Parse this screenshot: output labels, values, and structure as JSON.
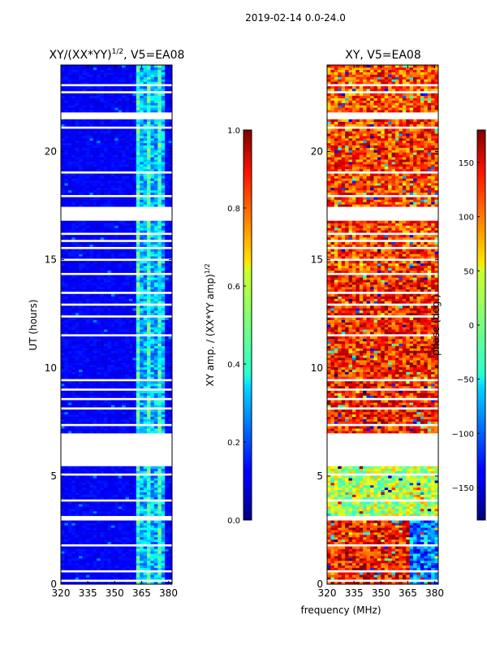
{
  "suptitle": "2019-02-14 0.0-24.0",
  "xlabel_shared": "frequency (MHz)",
  "chart_data": [
    {
      "type": "heatmap",
      "title": "XY/(XX*YY)",
      "title_sup": "1/2",
      "title_rest": ", V5=EA08",
      "xlabel": "frequency (MHz)",
      "ylabel": "UT (hours)",
      "xlim": [
        320,
        382
      ],
      "ylim": [
        0,
        24
      ],
      "xticks": [
        320,
        335,
        350,
        365,
        380
      ],
      "yticks": [
        0,
        5,
        10,
        15,
        20
      ],
      "colormap": "jet",
      "colorbar": {
        "label": "XY amp. / (XX*YY amp)",
        "label_sup": "1/2",
        "range": [
          0.0,
          1.0
        ],
        "ticks": [
          "0.0",
          "0.2",
          "0.4",
          "0.6",
          "0.8",
          "1.0"
        ]
      },
      "bright_band_mhz": [
        362,
        378
      ],
      "flagged_hours": [
        [
          0.15,
          0.25
        ],
        [
          0.55,
          0.62
        ],
        [
          0.85,
          0.92
        ],
        [
          1.75,
          1.82
        ],
        [
          2.5,
          2.55
        ],
        [
          2.95,
          3.2
        ],
        [
          3.8,
          3.95
        ],
        [
          4.65,
          4.72
        ],
        [
          5.05,
          5.15
        ],
        [
          5.45,
          7.0
        ],
        [
          7.35,
          7.45
        ],
        [
          7.6,
          7.65
        ],
        [
          8.1,
          8.2
        ],
        [
          8.55,
          8.6
        ],
        [
          9.0,
          9.05
        ],
        [
          9.4,
          9.45
        ],
        [
          9.9,
          9.95
        ],
        [
          10.35,
          10.4
        ],
        [
          10.8,
          10.85
        ],
        [
          11.45,
          11.55
        ],
        [
          12.35,
          12.45
        ],
        [
          12.9,
          12.95
        ],
        [
          13.4,
          13.55
        ],
        [
          14.3,
          14.4
        ],
        [
          15.0,
          15.1
        ],
        [
          15.5,
          15.55
        ],
        [
          15.8,
          15.9
        ],
        [
          16.2,
          16.25
        ],
        [
          16.75,
          17.5
        ],
        [
          17.85,
          18.05
        ],
        [
          18.4,
          18.45
        ],
        [
          19.0,
          19.05
        ],
        [
          19.4,
          19.45
        ],
        [
          19.8,
          19.9
        ],
        [
          20.25,
          20.3
        ],
        [
          20.7,
          20.75
        ],
        [
          21.1,
          21.2
        ],
        [
          21.45,
          21.8
        ],
        [
          22.0,
          22.05
        ],
        [
          22.35,
          22.4
        ],
        [
          22.7,
          22.75
        ],
        [
          23.05,
          23.1
        ]
      ]
    },
    {
      "type": "heatmap",
      "title": "XY, V5=EA08",
      "xlabel": "frequency (MHz)",
      "ylabel": "",
      "xlim": [
        320,
        382
      ],
      "ylim": [
        0,
        24
      ],
      "xticks": [
        320,
        335,
        350,
        365,
        380
      ],
      "yticks": [
        0,
        5,
        10,
        15,
        20
      ],
      "colormap": "jet",
      "colorbar": {
        "label": "phase (deg.)",
        "range": [
          -180,
          180
        ],
        "ticks": [
          "−150",
          "−100",
          "−50",
          "0",
          "50",
          "100",
          "150"
        ],
        "tick_values": [
          -150,
          -100,
          -50,
          0,
          50,
          100,
          150
        ]
      },
      "flagged_hours": [
        [
          0.15,
          0.25
        ],
        [
          0.55,
          0.62
        ],
        [
          0.85,
          0.92
        ],
        [
          1.75,
          1.82
        ],
        [
          2.5,
          2.55
        ],
        [
          2.95,
          3.2
        ],
        [
          3.8,
          3.95
        ],
        [
          4.65,
          4.72
        ],
        [
          5.05,
          5.15
        ],
        [
          5.45,
          7.0
        ],
        [
          7.35,
          7.45
        ],
        [
          7.6,
          7.65
        ],
        [
          8.1,
          8.2
        ],
        [
          8.55,
          8.6
        ],
        [
          9.0,
          9.05
        ],
        [
          9.4,
          9.45
        ],
        [
          9.9,
          9.95
        ],
        [
          10.35,
          10.4
        ],
        [
          10.8,
          10.85
        ],
        [
          11.45,
          11.55
        ],
        [
          12.35,
          12.45
        ],
        [
          12.9,
          12.95
        ],
        [
          13.4,
          13.55
        ],
        [
          14.3,
          14.4
        ],
        [
          15.0,
          15.1
        ],
        [
          15.5,
          15.55
        ],
        [
          15.8,
          15.9
        ],
        [
          16.2,
          16.25
        ],
        [
          16.75,
          17.5
        ],
        [
          17.85,
          18.05
        ],
        [
          18.4,
          18.45
        ],
        [
          19.0,
          19.05
        ],
        [
          19.4,
          19.45
        ],
        [
          19.8,
          19.9
        ],
        [
          20.25,
          20.3
        ],
        [
          20.7,
          20.75
        ],
        [
          21.1,
          21.2
        ],
        [
          21.45,
          21.8
        ],
        [
          22.0,
          22.05
        ],
        [
          22.35,
          22.4
        ],
        [
          22.7,
          22.75
        ],
        [
          23.05,
          23.1
        ]
      ]
    }
  ]
}
